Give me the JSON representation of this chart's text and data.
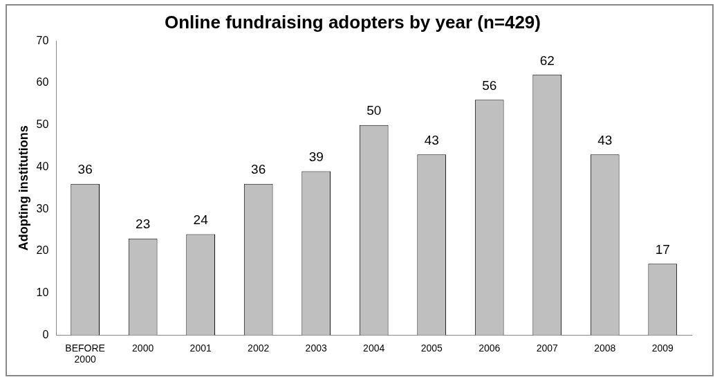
{
  "chart_data": {
    "type": "bar",
    "title": "Online fundraising adopters by year (n=429)",
    "ylabel": "Adopting institutions",
    "categories": [
      "BEFORE 2000",
      "2000",
      "2001",
      "2002",
      "2003",
      "2004",
      "2005",
      "2006",
      "2007",
      "2008",
      "2009"
    ],
    "values": [
      36,
      23,
      24,
      36,
      39,
      50,
      43,
      56,
      62,
      43,
      17
    ],
    "color": "#bfbfbf",
    "ylim": [
      0,
      70
    ],
    "yticks": [
      0,
      10,
      20,
      30,
      40,
      50,
      60,
      70
    ],
    "grid": false,
    "legend": false,
    "data_labels": true
  }
}
